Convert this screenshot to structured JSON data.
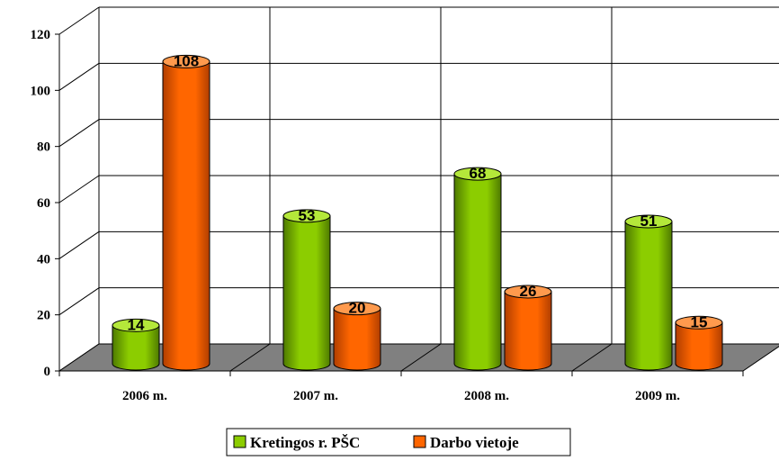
{
  "chart_data": {
    "type": "bar",
    "categories": [
      "2006 m.",
      "2007 m.",
      "2008 m.",
      "2009 m."
    ],
    "series": [
      {
        "name": "Kretingos r. PŠC",
        "values": [
          14,
          53,
          68,
          51
        ]
      },
      {
        "name": "Darbo vietoje",
        "values": [
          108,
          20,
          26,
          15
        ]
      }
    ],
    "ylim": [
      0,
      120
    ],
    "yticks": [
      0,
      20,
      40,
      60,
      80,
      100,
      120
    ],
    "grid": true,
    "legend_position": "bottom",
    "colors": {
      "series": [
        "#8ccd00",
        "#ff6600"
      ],
      "series_dark": [
        "#4e7a00",
        "#b03e00"
      ],
      "series_top": [
        "#b4e83a",
        "#ff9a4d"
      ],
      "floor": "#808080",
      "grid": "#000000"
    }
  }
}
